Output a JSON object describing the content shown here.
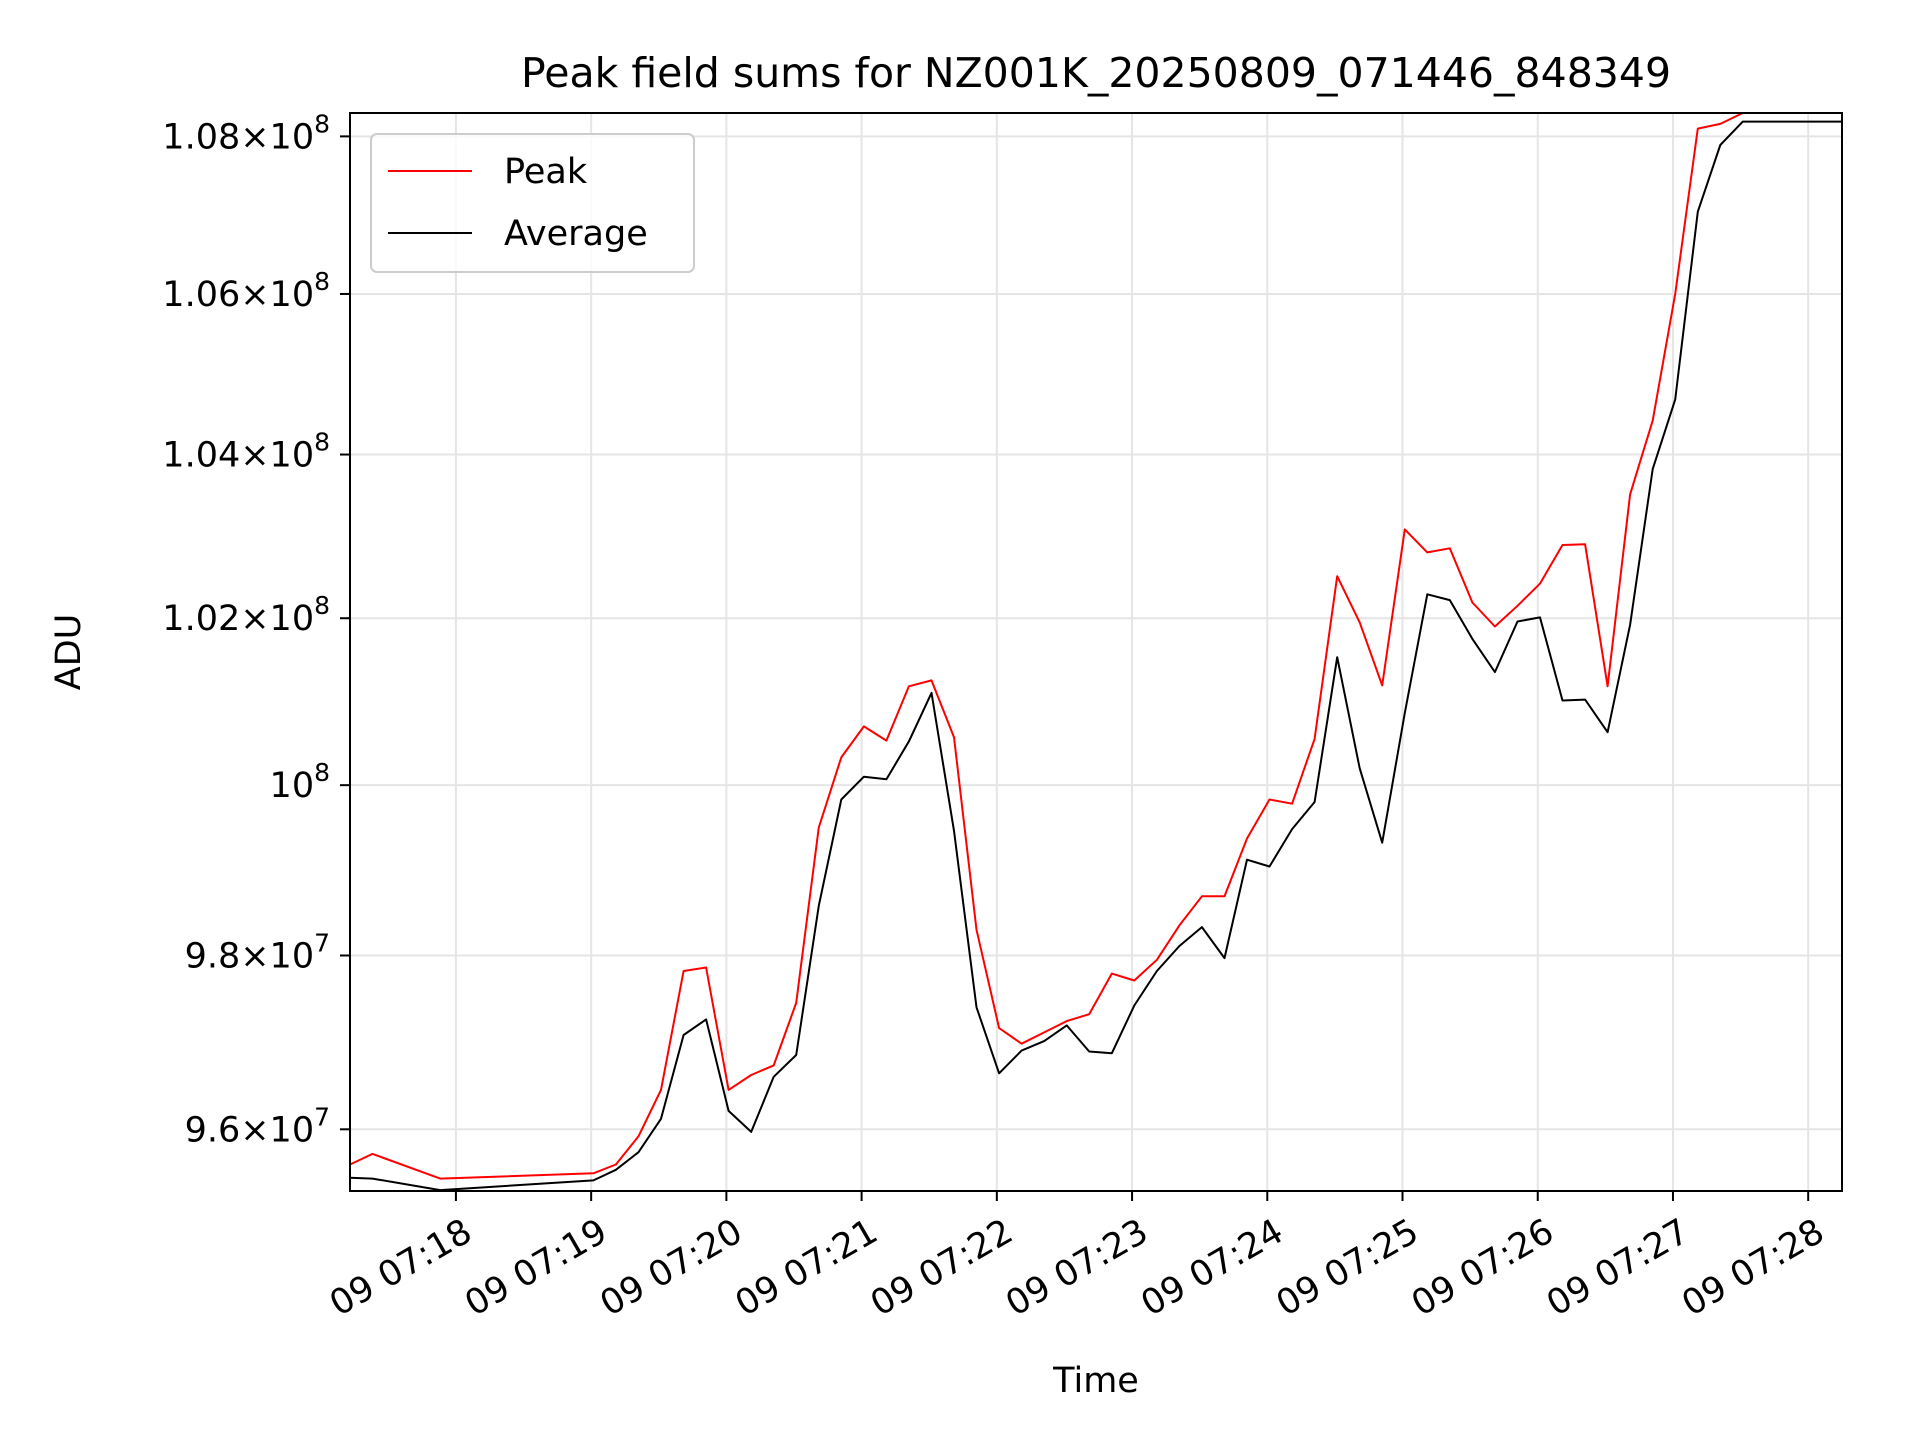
{
  "chart_data": {
    "type": "line",
    "title": "Peak field sums for NZ001K_20250809_071446_848349",
    "xlabel": "Time",
    "ylabel": "ADU",
    "y_scale": "log",
    "ylim": [
      95300000,
      108300000
    ],
    "xlim": [
      "2025-08-09 07:17:13",
      "2025-08-09 07:28:15"
    ],
    "grid": true,
    "legend_position": "top-left",
    "x_ticks": [
      {
        "t": "2025-08-09 07:18:00",
        "label": "09 07:18"
      },
      {
        "t": "2025-08-09 07:19:00",
        "label": "09 07:19"
      },
      {
        "t": "2025-08-09 07:20:00",
        "label": "09 07:20"
      },
      {
        "t": "2025-08-09 07:21:00",
        "label": "09 07:21"
      },
      {
        "t": "2025-08-09 07:22:00",
        "label": "09 07:22"
      },
      {
        "t": "2025-08-09 07:23:00",
        "label": "09 07:23"
      },
      {
        "t": "2025-08-09 07:24:00",
        "label": "09 07:24"
      },
      {
        "t": "2025-08-09 07:25:00",
        "label": "09 07:25"
      },
      {
        "t": "2025-08-09 07:26:00",
        "label": "09 07:26"
      },
      {
        "t": "2025-08-09 07:27:00",
        "label": "09 07:27"
      },
      {
        "t": "2025-08-09 07:28:00",
        "label": "09 07:28"
      }
    ],
    "y_ticks": [
      {
        "value": 96000000,
        "mantissa": "9.6",
        "exp": "7"
      },
      {
        "value": 98000000,
        "mantissa": "9.8",
        "exp": "7"
      },
      {
        "value": 100000000,
        "mantissa": "",
        "exp": "8"
      },
      {
        "value": 102000000,
        "mantissa": "1.02",
        "exp": "8"
      },
      {
        "value": 104000000,
        "mantissa": "1.04",
        "exp": "8"
      },
      {
        "value": 106000000,
        "mantissa": "1.06",
        "exp": "8"
      },
      {
        "value": 108000000,
        "mantissa": "1.08",
        "exp": "8"
      }
    ],
    "x": [
      "07:17:13",
      "07:17:23",
      "07:17:53",
      "07:19:01",
      "07:19:11",
      "07:19:21",
      "07:19:31",
      "07:19:41",
      "07:19:51",
      "07:20:01",
      "07:20:11",
      "07:20:21",
      "07:20:31",
      "07:20:41",
      "07:20:51",
      "07:21:01",
      "07:21:11",
      "07:21:21",
      "07:21:31",
      "07:21:41",
      "07:21:51",
      "07:22:01",
      "07:22:11",
      "07:22:21",
      "07:22:31",
      "07:22:41",
      "07:22:51",
      "07:23:01",
      "07:23:11",
      "07:23:21",
      "07:23:31",
      "07:23:41",
      "07:23:51",
      "07:24:01",
      "07:24:11",
      "07:24:21",
      "07:24:31",
      "07:24:41",
      "07:24:51",
      "07:25:01",
      "07:25:11",
      "07:25:21",
      "07:25:31",
      "07:25:41",
      "07:25:51",
      "07:26:01",
      "07:26:11",
      "07:26:21",
      "07:26:31",
      "07:26:41",
      "07:26:51",
      "07:27:01",
      "07:27:11",
      "07:27:21",
      "07:27:31",
      "07:27:41",
      "07:28:15"
    ],
    "series": [
      {
        "name": "Peak",
        "color": "#ff0000",
        "values": [
          95600000,
          95720000,
          95440000,
          95500000,
          95600000,
          95920000,
          96450000,
          97820000,
          97860000,
          96450000,
          96620000,
          96730000,
          97450000,
          99500000,
          100330000,
          100700000,
          100530000,
          101180000,
          101250000,
          100570000,
          98300000,
          97160000,
          96980000,
          97110000,
          97240000,
          97320000,
          97790000,
          97710000,
          97950000,
          98350000,
          98690000,
          98690000,
          99370000,
          99830000,
          99780000,
          100550000,
          102510000,
          101950000,
          101190000,
          103080000,
          102800000,
          102850000,
          102190000,
          101900000,
          102150000,
          102420000,
          102890000,
          102900000,
          101180000,
          103510000,
          104420000,
          106000000,
          108100000,
          108160000,
          108300000,
          108300000,
          108300000
        ]
      },
      {
        "name": "Average",
        "color": "#000000",
        "values": [
          95450000,
          95440000,
          95310000,
          95420000,
          95540000,
          95740000,
          96120000,
          97080000,
          97260000,
          96210000,
          95970000,
          96600000,
          96850000,
          98580000,
          99830000,
          100100000,
          100070000,
          100520000,
          101100000,
          99460000,
          97400000,
          96640000,
          96900000,
          97010000,
          97190000,
          96890000,
          96870000,
          97420000,
          97820000,
          98110000,
          98330000,
          97970000,
          99120000,
          99040000,
          99480000,
          99800000,
          101530000,
          100200000,
          99320000,
          100860000,
          102290000,
          102220000,
          101750000,
          101350000,
          101960000,
          102010000,
          101010000,
          101020000,
          100630000,
          101920000,
          103820000,
          104680000,
          107040000,
          107890000,
          108190000,
          108190000,
          108190000
        ]
      }
    ]
  }
}
